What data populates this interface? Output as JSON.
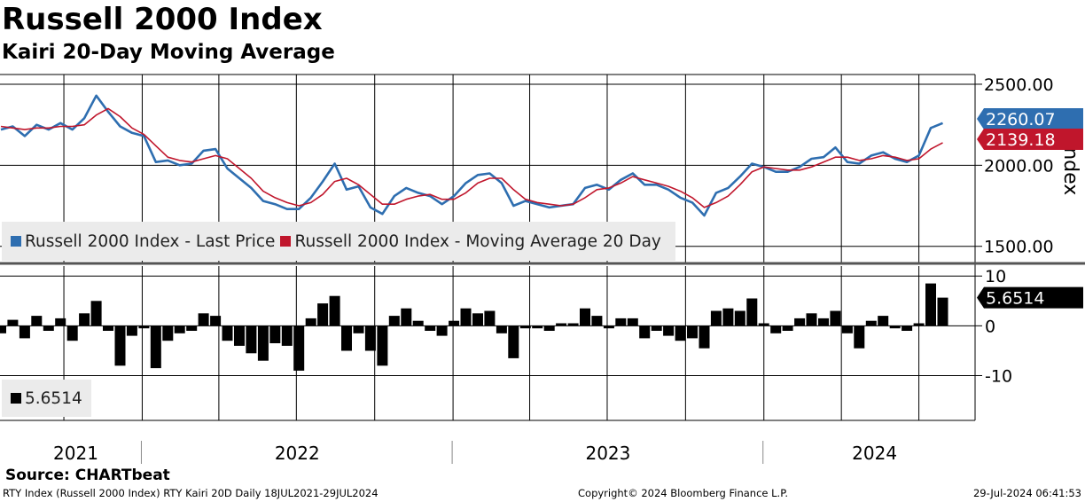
{
  "header": {
    "title": "Russell 2000 Index",
    "subtitle": "Kairi 20-Day Moving Average"
  },
  "source": "Source: CHARTbeat",
  "footer": {
    "left": "RTY Index (Russell 2000 Index) RTY Kairi 20D  Daily 18JUL2021-29JUL2024",
    "center": "Copyright© 2024 Bloomberg Finance L.P.",
    "right": "29-Jul-2024 06:41:53"
  },
  "colors": {
    "price": "#2e6eb0",
    "ma": "#c0162c",
    "kairi": "#000000",
    "grid": "#000000",
    "legend_bg": "#ebebeb"
  },
  "chart_data": [
    {
      "type": "line",
      "title": "Russell 2000 Index",
      "ylabel": "Index",
      "ylim": [
        1400,
        2560
      ],
      "y_ticks": [
        "2500.00",
        "2000.00",
        "1500.00"
      ],
      "x_year_labels": [
        "2021",
        "2022",
        "2023",
        "2024"
      ],
      "series": [
        {
          "name": "Russell 2000 Index - Last Price",
          "last_value": "2260.07",
          "x": [
            "2021-07-19",
            "2021-08-02",
            "2021-08-16",
            "2021-08-30",
            "2021-09-13",
            "2021-09-27",
            "2021-10-11",
            "2021-10-25",
            "2021-11-08",
            "2021-11-22",
            "2021-12-06",
            "2021-12-20",
            "2022-01-03",
            "2022-01-17",
            "2022-01-31",
            "2022-02-14",
            "2022-02-28",
            "2022-03-14",
            "2022-03-28",
            "2022-04-11",
            "2022-04-25",
            "2022-05-09",
            "2022-05-23",
            "2022-06-06",
            "2022-06-20",
            "2022-07-04",
            "2022-07-18",
            "2022-08-01",
            "2022-08-15",
            "2022-08-29",
            "2022-09-12",
            "2022-09-26",
            "2022-10-10",
            "2022-10-24",
            "2022-11-07",
            "2022-11-21",
            "2022-12-05",
            "2022-12-19",
            "2023-01-02",
            "2023-01-16",
            "2023-01-30",
            "2023-02-13",
            "2023-02-27",
            "2023-03-13",
            "2023-03-27",
            "2023-04-10",
            "2023-04-24",
            "2023-05-08",
            "2023-05-22",
            "2023-06-05",
            "2023-06-19",
            "2023-07-03",
            "2023-07-17",
            "2023-07-31",
            "2023-08-14",
            "2023-08-28",
            "2023-09-11",
            "2023-09-25",
            "2023-10-09",
            "2023-10-23",
            "2023-11-06",
            "2023-11-20",
            "2023-12-04",
            "2023-12-18",
            "2024-01-01",
            "2024-01-15",
            "2024-01-29",
            "2024-02-12",
            "2024-02-26",
            "2024-03-11",
            "2024-03-25",
            "2024-04-08",
            "2024-04-22",
            "2024-05-06",
            "2024-05-20",
            "2024-06-03",
            "2024-06-17",
            "2024-07-01",
            "2024-07-15",
            "2024-07-29"
          ],
          "values": [
            2220,
            2240,
            2180,
            2250,
            2220,
            2260,
            2220,
            2290,
            2430,
            2330,
            2240,
            2200,
            2180,
            2020,
            2030,
            2000,
            2010,
            2090,
            2100,
            1980,
            1920,
            1860,
            1780,
            1760,
            1730,
            1730,
            1800,
            1900,
            2010,
            1850,
            1870,
            1740,
            1700,
            1810,
            1860,
            1830,
            1810,
            1760,
            1810,
            1890,
            1940,
            1950,
            1890,
            1750,
            1780,
            1760,
            1740,
            1750,
            1760,
            1860,
            1880,
            1850,
            1910,
            1950,
            1880,
            1880,
            1850,
            1800,
            1770,
            1690,
            1830,
            1860,
            1930,
            2010,
            1990,
            1960,
            1960,
            1990,
            2040,
            2050,
            2110,
            2020,
            2010,
            2060,
            2080,
            2040,
            2020,
            2060,
            2230,
            2260
          ]
        },
        {
          "name": "Russell 2000 Index - Moving Average 20 Day",
          "last_value": "2139.18",
          "x": [
            "2021-07-19",
            "2021-08-02",
            "2021-08-16",
            "2021-08-30",
            "2021-09-13",
            "2021-09-27",
            "2021-10-11",
            "2021-10-25",
            "2021-11-08",
            "2021-11-22",
            "2021-12-06",
            "2021-12-20",
            "2022-01-03",
            "2022-01-17",
            "2022-01-31",
            "2022-02-14",
            "2022-02-28",
            "2022-03-14",
            "2022-03-28",
            "2022-04-11",
            "2022-04-25",
            "2022-05-09",
            "2022-05-23",
            "2022-06-06",
            "2022-06-20",
            "2022-07-04",
            "2022-07-18",
            "2022-08-01",
            "2022-08-15",
            "2022-08-29",
            "2022-09-12",
            "2022-09-26",
            "2022-10-10",
            "2022-10-24",
            "2022-11-07",
            "2022-11-21",
            "2022-12-05",
            "2022-12-19",
            "2023-01-02",
            "2023-01-16",
            "2023-01-30",
            "2023-02-13",
            "2023-02-27",
            "2023-03-13",
            "2023-03-27",
            "2023-04-10",
            "2023-04-24",
            "2023-05-08",
            "2023-05-22",
            "2023-06-05",
            "2023-06-19",
            "2023-07-03",
            "2023-07-17",
            "2023-07-31",
            "2023-08-14",
            "2023-08-28",
            "2023-09-11",
            "2023-09-25",
            "2023-10-09",
            "2023-10-23",
            "2023-11-06",
            "2023-11-20",
            "2023-12-04",
            "2023-12-18",
            "2024-01-01",
            "2024-01-15",
            "2024-01-29",
            "2024-02-12",
            "2024-02-26",
            "2024-03-11",
            "2024-03-25",
            "2024-04-08",
            "2024-04-22",
            "2024-05-06",
            "2024-05-20",
            "2024-06-03",
            "2024-06-17",
            "2024-07-01",
            "2024-07-15",
            "2024-07-29"
          ],
          "values": [
            2240,
            2230,
            2220,
            2230,
            2230,
            2240,
            2240,
            2250,
            2310,
            2350,
            2300,
            2230,
            2190,
            2120,
            2050,
            2030,
            2020,
            2040,
            2060,
            2040,
            1980,
            1920,
            1840,
            1800,
            1770,
            1750,
            1770,
            1820,
            1900,
            1920,
            1880,
            1820,
            1760,
            1760,
            1790,
            1810,
            1820,
            1790,
            1790,
            1830,
            1890,
            1920,
            1920,
            1850,
            1790,
            1770,
            1760,
            1750,
            1760,
            1800,
            1850,
            1860,
            1890,
            1930,
            1910,
            1890,
            1870,
            1840,
            1800,
            1740,
            1770,
            1810,
            1880,
            1960,
            1990,
            1980,
            1970,
            1970,
            1990,
            2020,
            2050,
            2050,
            2030,
            2040,
            2060,
            2050,
            2030,
            2040,
            2100,
            2139
          ]
        }
      ]
    },
    {
      "type": "bar",
      "title": "RTY Kairi 20D",
      "ylim": [
        -19,
        12
      ],
      "y_ticks": [
        "10",
        "0",
        "-10"
      ],
      "series": [
        {
          "name": "5.6514",
          "last_value": "5.6514",
          "x": [
            "2021-07-19",
            "2021-08-02",
            "2021-08-16",
            "2021-08-30",
            "2021-09-13",
            "2021-09-27",
            "2021-10-11",
            "2021-10-25",
            "2021-11-08",
            "2021-11-22",
            "2021-12-06",
            "2021-12-20",
            "2022-01-03",
            "2022-01-17",
            "2022-01-31",
            "2022-02-14",
            "2022-02-28",
            "2022-03-14",
            "2022-03-28",
            "2022-04-11",
            "2022-04-25",
            "2022-05-09",
            "2022-05-23",
            "2022-06-06",
            "2022-06-20",
            "2022-07-04",
            "2022-07-18",
            "2022-08-01",
            "2022-08-15",
            "2022-08-29",
            "2022-09-12",
            "2022-09-26",
            "2022-10-10",
            "2022-10-24",
            "2022-11-07",
            "2022-11-21",
            "2022-12-05",
            "2022-12-19",
            "2023-01-02",
            "2023-01-16",
            "2023-01-30",
            "2023-02-13",
            "2023-02-27",
            "2023-03-13",
            "2023-03-27",
            "2023-04-10",
            "2023-04-24",
            "2023-05-08",
            "2023-05-22",
            "2023-06-05",
            "2023-06-19",
            "2023-07-03",
            "2023-07-17",
            "2023-07-31",
            "2023-08-14",
            "2023-08-28",
            "2023-09-11",
            "2023-09-25",
            "2023-10-09",
            "2023-10-23",
            "2023-11-06",
            "2023-11-20",
            "2023-12-04",
            "2023-12-18",
            "2024-01-01",
            "2024-01-15",
            "2024-01-29",
            "2024-02-12",
            "2024-02-26",
            "2024-03-11",
            "2024-03-25",
            "2024-04-08",
            "2024-04-22",
            "2024-05-06",
            "2024-05-20",
            "2024-06-03",
            "2024-06-17",
            "2024-07-01",
            "2024-07-15",
            "2024-07-29"
          ],
          "values": [
            -1.5,
            1.2,
            -2.5,
            2.0,
            -1.0,
            1.5,
            -3.0,
            2.5,
            5.0,
            -1.0,
            -8.0,
            -2.0,
            -0.5,
            -8.5,
            -3.0,
            -1.5,
            -1.0,
            2.5,
            2.0,
            -3.0,
            -4.0,
            -5.5,
            -7.0,
            -3.5,
            -4.0,
            -9.0,
            1.5,
            4.5,
            6.0,
            -5.0,
            -1.5,
            -5.0,
            -8.0,
            2.0,
            3.5,
            1.0,
            -1.0,
            -2.0,
            1.0,
            3.5,
            2.5,
            3.0,
            -1.5,
            -6.5,
            -0.5,
            -0.5,
            -1.0,
            0.5,
            0.5,
            3.5,
            2.0,
            -0.5,
            1.5,
            1.5,
            -2.5,
            -1.0,
            -2.0,
            -3.0,
            -2.5,
            -4.5,
            3.0,
            3.5,
            3.0,
            5.5,
            0.5,
            -1.5,
            -1.0,
            1.5,
            2.5,
            1.5,
            3.0,
            -1.5,
            -4.5,
            1.0,
            2.0,
            -0.5,
            -1.0,
            0.5,
            8.5,
            5.65
          ]
        }
      ]
    }
  ]
}
